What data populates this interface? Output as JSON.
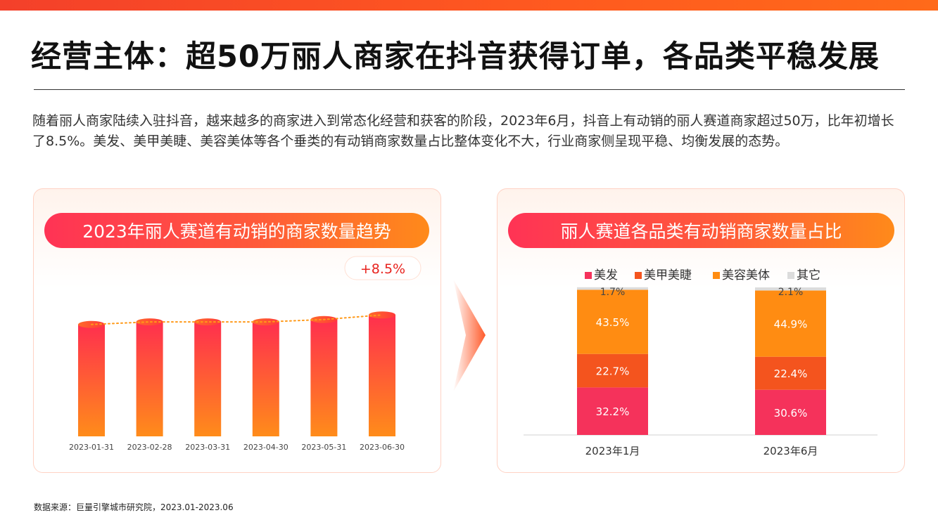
{
  "header": {
    "title": "经营主体：超50万丽人商家在抖音获得订单，各品类平稳发展",
    "intro": "随着丽人商家陆续入驻抖音，越来越多的商家进入到常态化经营和获客的阶段，2023年6月，抖音上有动销的丽人赛道商家超过50万，比年初增长了8.5%。美发、美甲美睫、美容美体等各个垂类的有动销商家数量占比整体变化不大，行业商家侧呈现平稳、均衡发展的态势。"
  },
  "left_card": {
    "title": "2023年丽人赛道有动销的商家数量趋势",
    "growth_label": "+8.5%"
  },
  "right_card": {
    "title": "丽人赛道各品类有动销商家数量占比"
  },
  "footer": {
    "source": "数据来源：巨量引擎城市研究院，2023.01-2023.06"
  },
  "colors": {
    "accent": "#ff5a1f",
    "美发": "#f5325b",
    "美甲美睫": "#f4541e",
    "美容美体": "#ff8c12",
    "其它": "#dcdcdc"
  },
  "chart_data": [
    {
      "type": "bar",
      "title": "2023年丽人赛道有动销的商家数量趋势",
      "categories": [
        "2023-01-31",
        "2023-02-28",
        "2023-03-31",
        "2023-04-30",
        "2023-05-31",
        "2023-06-30"
      ],
      "values": [
        100,
        102.3,
        102.3,
        102.3,
        104.4,
        108.5
      ],
      "value_note": "indexed, Jan = 100; no axis printed",
      "annotation": "+8.5%",
      "trend_line": "dotted",
      "grid": false
    },
    {
      "type": "bar",
      "stacked": true,
      "normalized": true,
      "title": "丽人赛道各品类有动销商家数量占比",
      "categories": [
        "2023年1月",
        "2023年6月"
      ],
      "series": [
        {
          "name": "美发",
          "values": [
            32.2,
            30.6
          ],
          "labels": [
            "32.2%",
            "30.6%"
          ]
        },
        {
          "name": "美甲美睫",
          "values": [
            22.7,
            22.4
          ],
          "labels": [
            "22.7%",
            "22.4%"
          ]
        },
        {
          "name": "美容美体",
          "values": [
            43.5,
            44.9
          ],
          "labels": [
            "43.5%",
            "44.9%"
          ]
        },
        {
          "name": "其它",
          "values": [
            1.7,
            2.1
          ],
          "labels": [
            "1.7%",
            "2.1%"
          ]
        }
      ],
      "legend": "top",
      "grid": false
    }
  ]
}
